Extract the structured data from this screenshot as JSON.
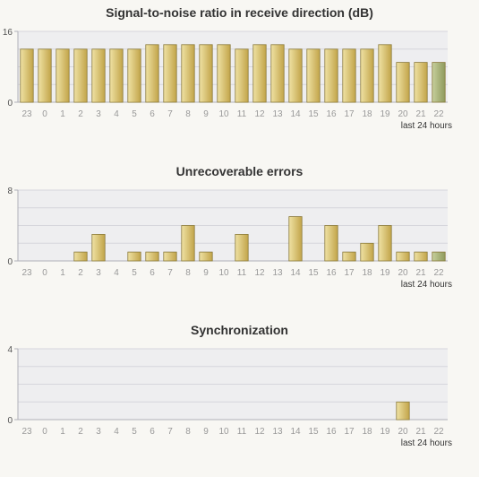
{
  "chart_data": [
    {
      "type": "bar",
      "title": "Signal-to-noise ratio in receive direction (dB)",
      "categories": [
        "23",
        "0",
        "1",
        "2",
        "3",
        "4",
        "5",
        "6",
        "7",
        "8",
        "9",
        "10",
        "11",
        "12",
        "13",
        "14",
        "15",
        "16",
        "17",
        "18",
        "19",
        "20",
        "21",
        "22"
      ],
      "values": [
        12,
        12,
        12,
        12,
        12,
        12,
        12,
        13,
        13,
        13,
        13,
        13,
        12,
        13,
        13,
        12,
        12,
        12,
        12,
        12,
        13,
        9,
        9,
        9
      ],
      "ylim": [
        0,
        16
      ],
      "yticks": [
        "0",
        "16"
      ],
      "footnote": "last 24 hours",
      "highlight_last": true,
      "grid": true
    },
    {
      "type": "bar",
      "title": "Unrecoverable errors",
      "categories": [
        "23",
        "0",
        "1",
        "2",
        "3",
        "4",
        "5",
        "6",
        "7",
        "8",
        "9",
        "10",
        "11",
        "12",
        "13",
        "14",
        "15",
        "16",
        "17",
        "18",
        "19",
        "20",
        "21",
        "22"
      ],
      "values": [
        0,
        0,
        0,
        1,
        3,
        0,
        1,
        1,
        1,
        4,
        1,
        0,
        3,
        0,
        0,
        5,
        0,
        4,
        1,
        2,
        4,
        1,
        1,
        1
      ],
      "ylim": [
        0,
        8
      ],
      "yticks": [
        "0",
        "8"
      ],
      "footnote": "last 24 hours",
      "highlight_last": true,
      "grid": true
    },
    {
      "type": "bar",
      "title": "Synchronization",
      "categories": [
        "23",
        "0",
        "1",
        "2",
        "3",
        "4",
        "5",
        "6",
        "7",
        "8",
        "9",
        "10",
        "11",
        "12",
        "13",
        "14",
        "15",
        "16",
        "17",
        "18",
        "19",
        "20",
        "21",
        "22"
      ],
      "values": [
        0,
        0,
        0,
        0,
        0,
        0,
        0,
        0,
        0,
        0,
        0,
        0,
        0,
        0,
        0,
        0,
        0,
        0,
        0,
        0,
        0,
        1,
        0,
        0
      ],
      "ylim": [
        0,
        4
      ],
      "yticks": [
        "0",
        "4"
      ],
      "footnote": "last 24 hours",
      "highlight_last": false,
      "grid": true
    }
  ],
  "colors": {
    "bar_light": "#efe2a4",
    "bar_dark": "#c2a449",
    "bar_stroke": "#8a7a3a",
    "last_light": "#c7cf9c",
    "last_dark": "#8e9a5c",
    "plot_bg": "#eeeef0",
    "grid": "#d6d6dc",
    "axis": "#b0b0b8"
  }
}
